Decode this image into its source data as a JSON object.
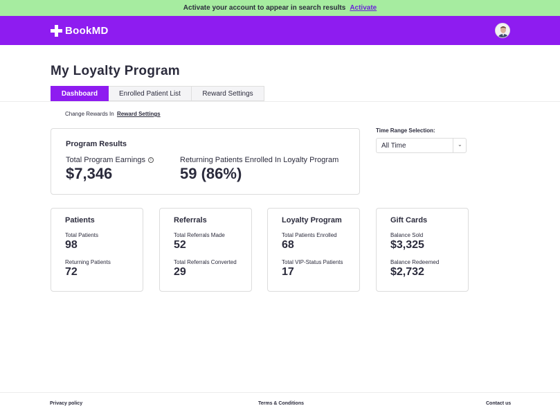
{
  "banner": {
    "text": "Activate your account to appear in search results",
    "link": "Activate"
  },
  "header": {
    "logo_text": "BookMD",
    "logo_icon": "cross-icon",
    "avatar": "user-avatar"
  },
  "page": {
    "title": "My Loyalty Program"
  },
  "tabs": [
    {
      "label": "Dashboard",
      "active": true
    },
    {
      "label": "Enrolled Patient List",
      "active": false
    },
    {
      "label": "Reward Settings",
      "active": false
    }
  ],
  "rewards_note": {
    "text": "Change Rewards In",
    "link": "Reward Settings"
  },
  "program_results": {
    "title": "Program Results",
    "earnings_label": "Total Program Earnings",
    "earnings_value": "$7,346",
    "returning_label": "Returning Patients Enrolled In Loyalty Program",
    "returning_value": "59 (86%)"
  },
  "time_range": {
    "label": "Time Range Selection:",
    "value": "All Time"
  },
  "cards": [
    {
      "title": "Patients",
      "label1": "Total Patients",
      "value1": "98",
      "label2": "Returning Patients",
      "value2": "72"
    },
    {
      "title": "Referrals",
      "label1": "Total Referrals Made",
      "value1": "52",
      "label2": "Total Referrals Converted",
      "value2": "29"
    },
    {
      "title": "Loyalty Program",
      "label1": "Total Patients Enrolled",
      "value1": "68",
      "label2": "Total VIP-Status Patients",
      "value2": "17"
    },
    {
      "title": "Gift Cards",
      "label1": "Balance Sold",
      "value1": "$3,325",
      "label2": "Balance Redeemed",
      "value2": "$2,732"
    }
  ],
  "footer": {
    "privacy": "Privacy policy",
    "terms": "Terms & Conditions",
    "contact": "Contact us"
  },
  "colors": {
    "brand_purple": "#8e1cf0",
    "banner_green": "#a6eca0",
    "link_purple": "#6a22d8"
  }
}
